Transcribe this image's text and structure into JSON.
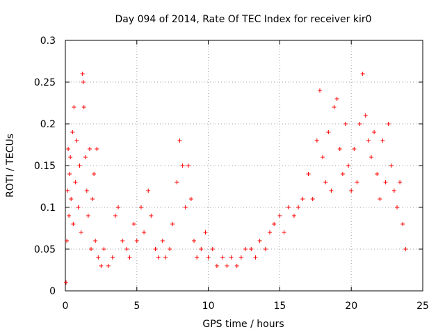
{
  "chart_data": {
    "type": "scatter",
    "title": "Day 094 of 2014, Rate Of TEC Index for receiver kir0",
    "xlabel": "GPS time / hours",
    "ylabel": "ROTI / TECUs",
    "xlim": [
      0,
      25
    ],
    "ylim": [
      0,
      0.3
    ],
    "xticks": [
      "0",
      "5",
      "10",
      "15",
      "20",
      "25"
    ],
    "yticks": [
      "0",
      "0.05",
      "0.1",
      "0.15",
      "0.2",
      "0.25",
      "0.3"
    ],
    "grid": true,
    "marker": "+",
    "color": "#ff0000",
    "series": [
      {
        "points": [
          [
            0.05,
            0.01
          ],
          [
            0.1,
            0.06
          ],
          [
            0.15,
            0.12
          ],
          [
            0.2,
            0.17
          ],
          [
            0.25,
            0.09
          ],
          [
            0.3,
            0.14
          ],
          [
            0.35,
            0.16
          ],
          [
            0.4,
            0.11
          ],
          [
            0.5,
            0.19
          ],
          [
            0.55,
            0.08
          ],
          [
            0.6,
            0.22
          ],
          [
            0.7,
            0.13
          ],
          [
            0.8,
            0.18
          ],
          [
            0.9,
            0.1
          ],
          [
            1.0,
            0.15
          ],
          [
            1.1,
            0.07
          ],
          [
            1.2,
            0.26
          ],
          [
            1.25,
            0.25
          ],
          [
            1.3,
            0.22
          ],
          [
            1.4,
            0.16
          ],
          [
            1.5,
            0.12
          ],
          [
            1.6,
            0.09
          ],
          [
            1.7,
            0.17
          ],
          [
            1.8,
            0.05
          ],
          [
            1.9,
            0.11
          ],
          [
            2.0,
            0.14
          ],
          [
            2.1,
            0.06
          ],
          [
            2.2,
            0.17
          ],
          [
            2.3,
            0.04
          ],
          [
            2.5,
            0.03
          ],
          [
            2.7,
            0.05
          ],
          [
            3.0,
            0.03
          ],
          [
            3.3,
            0.04
          ],
          [
            3.5,
            0.09
          ],
          [
            3.7,
            0.1
          ],
          [
            4.0,
            0.06
          ],
          [
            4.3,
            0.05
          ],
          [
            4.5,
            0.04
          ],
          [
            4.8,
            0.08
          ],
          [
            5.0,
            0.06
          ],
          [
            5.3,
            0.1
          ],
          [
            5.5,
            0.07
          ],
          [
            5.8,
            0.12
          ],
          [
            6.0,
            0.09
          ],
          [
            6.3,
            0.05
          ],
          [
            6.5,
            0.04
          ],
          [
            6.8,
            0.06
          ],
          [
            7.0,
            0.04
          ],
          [
            7.3,
            0.05
          ],
          [
            7.5,
            0.08
          ],
          [
            7.8,
            0.13
          ],
          [
            8.0,
            0.18
          ],
          [
            8.2,
            0.15
          ],
          [
            8.4,
            0.1
          ],
          [
            8.6,
            0.15
          ],
          [
            8.8,
            0.11
          ],
          [
            9.0,
            0.06
          ],
          [
            9.2,
            0.04
          ],
          [
            9.5,
            0.05
          ],
          [
            9.8,
            0.07
          ],
          [
            10.0,
            0.04
          ],
          [
            10.3,
            0.05
          ],
          [
            10.6,
            0.03
          ],
          [
            11.0,
            0.04
          ],
          [
            11.3,
            0.03
          ],
          [
            11.6,
            0.04
          ],
          [
            12.0,
            0.03
          ],
          [
            12.3,
            0.04
          ],
          [
            12.6,
            0.05
          ],
          [
            13.0,
            0.05
          ],
          [
            13.3,
            0.04
          ],
          [
            13.6,
            0.06
          ],
          [
            14.0,
            0.05
          ],
          [
            14.3,
            0.07
          ],
          [
            14.6,
            0.08
          ],
          [
            15.0,
            0.09
          ],
          [
            15.3,
            0.07
          ],
          [
            15.6,
            0.1
          ],
          [
            16.0,
            0.09
          ],
          [
            16.3,
            0.1
          ],
          [
            16.6,
            0.11
          ],
          [
            17.0,
            0.14
          ],
          [
            17.3,
            0.11
          ],
          [
            17.6,
            0.18
          ],
          [
            17.8,
            0.24
          ],
          [
            18.0,
            0.16
          ],
          [
            18.2,
            0.13
          ],
          [
            18.4,
            0.19
          ],
          [
            18.6,
            0.12
          ],
          [
            18.8,
            0.22
          ],
          [
            19.0,
            0.23
          ],
          [
            19.2,
            0.17
          ],
          [
            19.4,
            0.14
          ],
          [
            19.6,
            0.2
          ],
          [
            19.8,
            0.15
          ],
          [
            20.0,
            0.12
          ],
          [
            20.2,
            0.17
          ],
          [
            20.4,
            0.13
          ],
          [
            20.6,
            0.2
          ],
          [
            20.8,
            0.26
          ],
          [
            21.0,
            0.21
          ],
          [
            21.2,
            0.18
          ],
          [
            21.4,
            0.16
          ],
          [
            21.6,
            0.19
          ],
          [
            21.8,
            0.14
          ],
          [
            22.0,
            0.11
          ],
          [
            22.2,
            0.18
          ],
          [
            22.4,
            0.13
          ],
          [
            22.6,
            0.2
          ],
          [
            22.8,
            0.15
          ],
          [
            23.0,
            0.12
          ],
          [
            23.2,
            0.1
          ],
          [
            23.4,
            0.13
          ],
          [
            23.6,
            0.08
          ],
          [
            23.8,
            0.05
          ]
        ]
      }
    ]
  }
}
